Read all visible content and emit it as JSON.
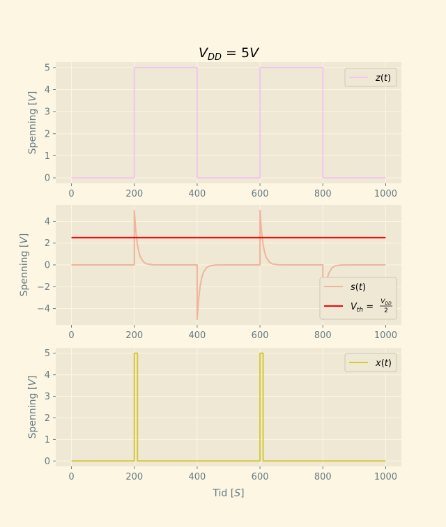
{
  "chart_data": [
    {
      "type": "line",
      "title_main": "V",
      "title_sub": "DD",
      "title_rest": " = 5V",
      "xlabel": "",
      "ylabel": "Spenning [V]",
      "xlim": [
        -50,
        1050
      ],
      "ylim": [
        -0.25,
        5.25
      ],
      "xticks": [
        0,
        200,
        400,
        600,
        800,
        1000
      ],
      "yticks": [
        0,
        1,
        2,
        3,
        4,
        5
      ],
      "legend_position": "top-right",
      "grid": true,
      "series": [
        {
          "name": "z(t)",
          "color": "#f2c6f0",
          "x": [
            0,
            200,
            200,
            400,
            400,
            600,
            600,
            800,
            800,
            1000
          ],
          "y": [
            0,
            0,
            5,
            5,
            0,
            0,
            5,
            5,
            0,
            0
          ]
        }
      ]
    },
    {
      "type": "line",
      "xlabel": "",
      "ylabel": "Spenning [V]",
      "xlim": [
        -50,
        1050
      ],
      "ylim": [
        -5.5,
        5.5
      ],
      "xticks": [
        0,
        200,
        400,
        600,
        800,
        1000
      ],
      "yticks": [
        -4,
        -2,
        0,
        2,
        4
      ],
      "legend_position": "bottom-right",
      "grid": true,
      "series": [
        {
          "name": "s(t)",
          "color": "#f0b49c",
          "x": [
            0,
            200,
            200,
            205,
            210,
            215,
            220,
            230,
            240,
            260,
            300,
            400,
            400,
            405,
            410,
            415,
            420,
            430,
            440,
            460,
            500,
            600,
            600,
            605,
            610,
            615,
            620,
            630,
            640,
            660,
            700,
            800,
            800,
            805,
            810,
            815,
            820,
            830,
            840,
            860,
            900,
            1000
          ],
          "y": [
            0,
            0,
            5,
            3.03,
            1.84,
            1.12,
            0.68,
            0.25,
            0.09,
            0.01,
            0,
            0,
            -5,
            -3.03,
            -1.84,
            -1.12,
            -0.68,
            -0.25,
            -0.09,
            -0.01,
            0,
            0,
            5,
            3.03,
            1.84,
            1.12,
            0.68,
            0.25,
            0.09,
            0.01,
            0,
            0,
            -5,
            -3.03,
            -1.84,
            -1.12,
            -0.68,
            -0.25,
            -0.09,
            -0.01,
            0,
            0
          ]
        },
        {
          "name": "V_th = V_DD / 2",
          "color": "#ff0000",
          "x": [
            0,
            1000
          ],
          "y": [
            2.5,
            2.5
          ]
        }
      ],
      "legend_labels": {
        "s": "s(t)",
        "vth_main": "V",
        "vth_sub": "th",
        "vth_eq": " = ",
        "frac_num_main": "V",
        "frac_num_sub": "DD",
        "frac_den": "2"
      }
    },
    {
      "type": "line",
      "xlabel": "Tid [S]",
      "ylabel": "Spenning [V]",
      "xlim": [
        -50,
        1050
      ],
      "ylim": [
        -0.25,
        5.25
      ],
      "xticks": [
        0,
        200,
        400,
        600,
        800,
        1000
      ],
      "yticks": [
        0,
        1,
        2,
        3,
        4,
        5
      ],
      "legend_position": "top-right",
      "grid": true,
      "series": [
        {
          "name": "x(t)",
          "color": "#d6c93a",
          "x": [
            0,
            200,
            200,
            210,
            210,
            600,
            600,
            610,
            610,
            1000
          ],
          "y": [
            0,
            0,
            5,
            5,
            0,
            0,
            5,
            5,
            0,
            0
          ]
        }
      ]
    }
  ]
}
